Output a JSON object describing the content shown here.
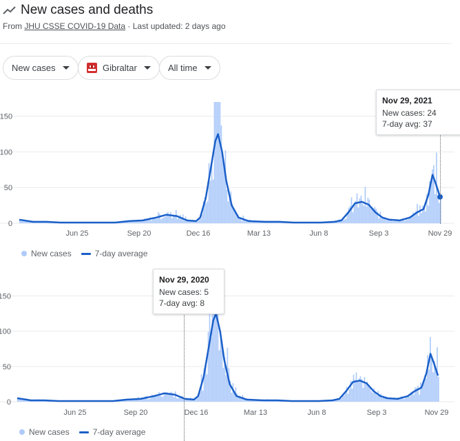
{
  "header": {
    "title": "New cases and deaths",
    "source_prefix": "From",
    "source_link": "JHU CSSE COVID-19 Data",
    "updated": "· Last updated: 2 days ago"
  },
  "filters": {
    "metric": "New cases",
    "location": "Gibraltar",
    "range": "All time"
  },
  "colors": {
    "bars": "#aecbfa",
    "average_line": "#1a5fc8",
    "grid": "#e8eaed",
    "flag_red": "#d32f2f"
  },
  "icons": [
    "trending-icon",
    "caret-down-icon",
    "gibraltar-flag-icon"
  ],
  "tooltips": [
    {
      "date": "Nov 29, 2021",
      "cases": "New cases: 24",
      "avg": "7-day avg: 37"
    },
    {
      "date": "Nov 29, 2020",
      "cases": "New cases: 5",
      "avg": "7-day avg: 8"
    }
  ],
  "legend": {
    "bars": "New cases",
    "line": "7-day average"
  },
  "chart_data": [
    {
      "type": "bar",
      "description": "Daily new cases with 7-day average line, Gibraltar (top panel)",
      "y_ticks": [
        0,
        50,
        100,
        150
      ],
      "ylim": [
        0,
        170
      ],
      "x_tick_labels": [
        "Jun 25",
        "Sep 20",
        "Dec 16",
        "Mar 13",
        "Jun 8",
        "Sep 3",
        "Nov 29"
      ],
      "avg_series": {
        "name": "7-day average",
        "points": [
          [
            0,
            5
          ],
          [
            20,
            2
          ],
          [
            40,
            2
          ],
          [
            60,
            1
          ],
          [
            80,
            1
          ],
          [
            100,
            1
          ],
          [
            120,
            1
          ],
          [
            140,
            1
          ],
          [
            160,
            3
          ],
          [
            180,
            4
          ],
          [
            200,
            8
          ],
          [
            215,
            12
          ],
          [
            230,
            10
          ],
          [
            245,
            4
          ],
          [
            258,
            3
          ],
          [
            264,
            8
          ],
          [
            272,
            35
          ],
          [
            280,
            80
          ],
          [
            286,
            115
          ],
          [
            290,
            125
          ],
          [
            296,
            100
          ],
          [
            302,
            60
          ],
          [
            310,
            25
          ],
          [
            320,
            8
          ],
          [
            335,
            3
          ],
          [
            360,
            2
          ],
          [
            380,
            2
          ],
          [
            400,
            1
          ],
          [
            420,
            1
          ],
          [
            440,
            1
          ],
          [
            460,
            2
          ],
          [
            470,
            4
          ],
          [
            480,
            15
          ],
          [
            490,
            28
          ],
          [
            500,
            30
          ],
          [
            510,
            26
          ],
          [
            520,
            15
          ],
          [
            530,
            8
          ],
          [
            540,
            5
          ],
          [
            555,
            4
          ],
          [
            570,
            8
          ],
          [
            580,
            15
          ],
          [
            590,
            20
          ],
          [
            597,
            40
          ],
          [
            603,
            68
          ],
          [
            608,
            55
          ],
          [
            614,
            37
          ]
        ],
        "endpoint": 37
      },
      "highlight": {
        "date": "Nov 29, 2021",
        "cases": 24,
        "avg": 37
      }
    },
    {
      "type": "bar",
      "description": "Daily new cases with 7-day average line, Gibraltar (bottom panel)",
      "y_ticks": [
        0,
        50,
        100,
        150
      ],
      "ylim": [
        0,
        170
      ],
      "x_tick_labels": [
        "Jun 25",
        "Sep 20",
        "Dec 16",
        "Mar 13",
        "Jun 8",
        "Sep 3",
        "Nov 29"
      ],
      "highlight": {
        "date": "Nov 29, 2020",
        "cases": 5,
        "avg": 8
      }
    }
  ]
}
